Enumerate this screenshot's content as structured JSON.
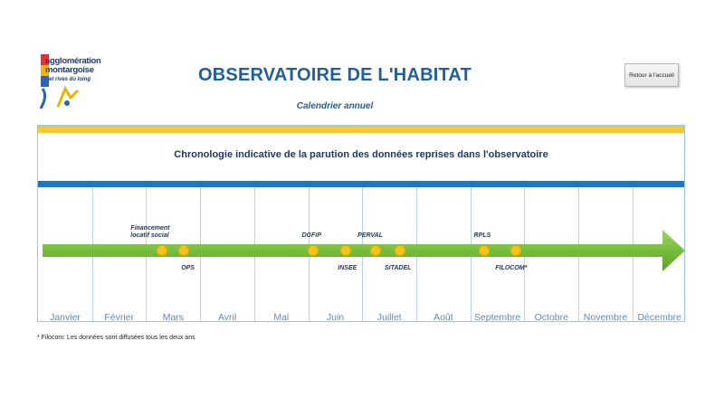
{
  "logo": {
    "line1": "agglomération",
    "line2": "montargoise",
    "line3": "et rives du loing"
  },
  "page_title": "OBSERVATOIRE DE L'HABITAT",
  "subtitle": "Calendrier annuel",
  "home_button": "Retour à l'accueil",
  "timeline": {
    "heading": "Chronologie indicative de la parution des données reprises dans l'observatoire",
    "months": [
      "Janvier",
      "Février",
      "Mars",
      "Avril",
      "Mai",
      "Juin",
      "Juillet",
      "Août",
      "Septembre",
      "Octobre",
      "Novembre",
      "Décembre"
    ],
    "events": [
      {
        "label": "Financement\nlocatif social",
        "position": "above",
        "month_index": 2.3
      },
      {
        "label": "OPS",
        "position": "below",
        "month_index": 2.7
      },
      {
        "label": "DGFiP",
        "position": "above",
        "month_index": 5.1
      },
      {
        "label": "INSEE",
        "position": "below",
        "month_index": 5.7
      },
      {
        "label": "PERVAL",
        "position": "above",
        "month_index": 6.25
      },
      {
        "label": "SITADEL",
        "position": "below",
        "month_index": 6.7
      },
      {
        "label": "RPLS",
        "position": "above",
        "month_index": 8.25
      },
      {
        "label": "FILOCOM*",
        "position": "below",
        "month_index": 8.85
      }
    ]
  },
  "footnote": "* Filocom: Les données sont diffusées tous les deux ans",
  "colors": {
    "accent_blue": "#1f77c4",
    "yellow": "#f5c932",
    "green_arrow": "#7ac142",
    "title_blue": "#1f5f9c"
  }
}
